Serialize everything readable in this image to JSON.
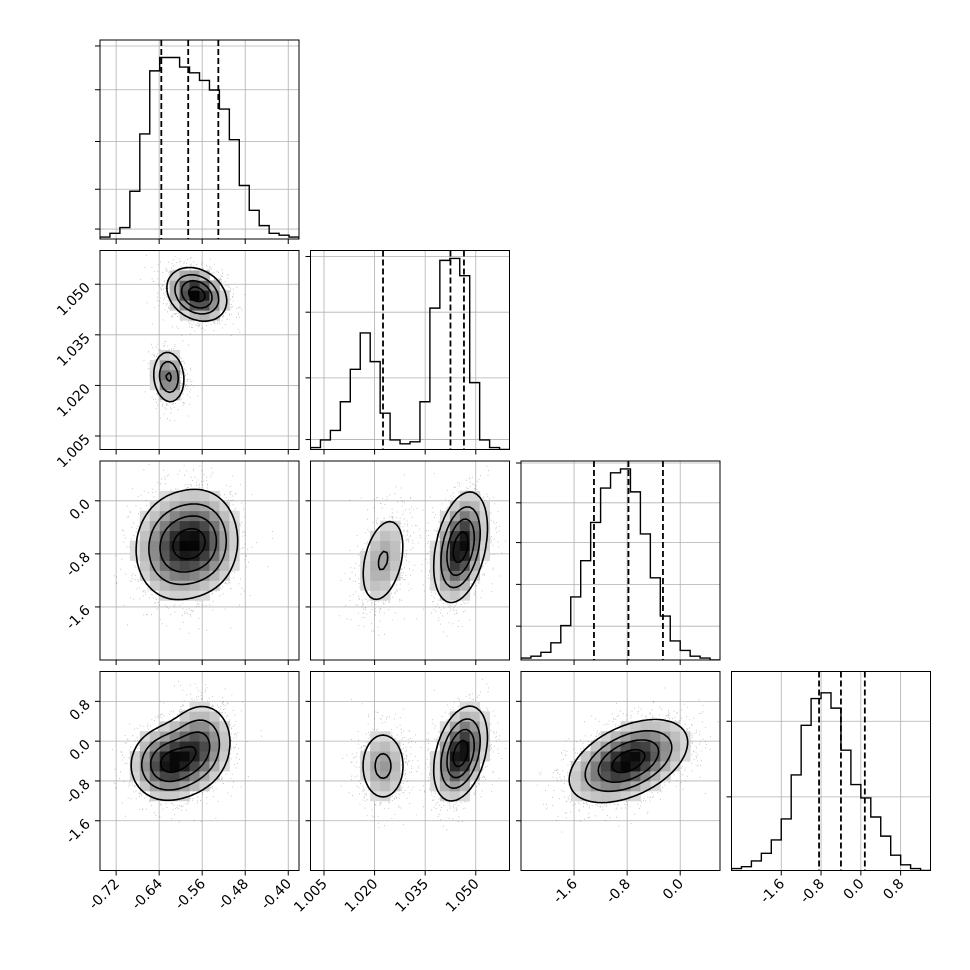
{
  "chart_data": {
    "type": "corner",
    "title": "",
    "grid": true,
    "colors": {
      "hist": "#000000",
      "quantile": "#000000",
      "grid": "#b0b0b0",
      "points": "#000000"
    },
    "params": [
      {
        "range": [
          -0.75,
          -0.38
        ],
        "ticks": [
          "-0.72",
          "-0.64",
          "-0.56",
          "-0.48",
          "-0.40"
        ],
        "tick_values": [
          -0.72,
          -0.64,
          -0.56,
          -0.48,
          -0.4
        ],
        "quantiles": [
          -0.636,
          -0.586,
          -0.53
        ],
        "hist": {
          "edges_start": -0.75,
          "bin_width": 0.0185,
          "counts": [
            0.01,
            0.03,
            0.06,
            0.25,
            0.55,
            0.88,
            0.95,
            0.95,
            0.9,
            0.87,
            0.83,
            0.78,
            0.68,
            0.52,
            0.28,
            0.15,
            0.07,
            0.03,
            0.02,
            0.01
          ]
        },
        "hist_grid_fracs": [
          0.05,
          0.25,
          0.49,
          0.75,
          0.97
        ]
      },
      {
        "range": [
          1.001,
          1.06
        ],
        "ticks": [
          "1.005",
          "1.020",
          "1.035",
          "1.050"
        ],
        "tick_values": [
          1.005,
          1.02,
          1.035,
          1.05
        ],
        "quantiles": [
          1.0225,
          1.0425,
          1.0465
        ],
        "hist": {
          "edges_start": 1.001,
          "bin_width": 0.00295,
          "counts": [
            0.01,
            0.05,
            0.1,
            0.25,
            0.42,
            0.61,
            0.46,
            0.19,
            0.05,
            0.03,
            0.04,
            0.25,
            0.74,
            0.99,
            1.0,
            0.91,
            0.35,
            0.05,
            0.01,
            0.0
          ]
        },
        "hist_grid_fracs": [
          0.05,
          0.36,
          0.69,
          0.97
        ]
      },
      {
        "range": [
          -2.4,
          0.6
        ],
        "ticks": [
          "-1.6",
          "-0.8",
          "0.0"
        ],
        "tick_values": [
          -1.6,
          -0.8,
          0.0
        ],
        "quantiles": [
          -1.3,
          -0.78,
          -0.26
        ],
        "hist": {
          "edges_start": -2.4,
          "bin_width": 0.15,
          "counts": [
            0.01,
            0.02,
            0.04,
            0.09,
            0.18,
            0.33,
            0.52,
            0.72,
            0.9,
            0.98,
            1.0,
            0.88,
            0.66,
            0.43,
            0.23,
            0.1,
            0.05,
            0.02,
            0.01,
            0.0
          ]
        },
        "hist_grid_fracs": [
          0.17,
          0.38,
          0.59,
          0.79,
          0.99
        ]
      },
      {
        "range": [
          -2.6,
          1.4
        ],
        "ticks": [
          "-1.6",
          "-0.8",
          "0.0",
          "0.8"
        ],
        "tick_values": [
          -1.6,
          -0.8,
          0.0,
          0.8
        ],
        "quantiles": [
          -0.84,
          -0.4,
          0.08
        ],
        "hist": {
          "edges_start": -2.6,
          "bin_width": 0.2,
          "counts": [
            0.01,
            0.02,
            0.05,
            0.09,
            0.16,
            0.27,
            0.5,
            0.76,
            0.9,
            0.93,
            0.85,
            0.63,
            0.45,
            0.38,
            0.28,
            0.18,
            0.08,
            0.03,
            0.01,
            0.0
          ]
        },
        "hist_grid_fracs": [
          0.37,
          0.75
        ]
      }
    ],
    "pairs": [
      {
        "row": 1,
        "col": 0,
        "modes": [
          {
            "mx": -0.57,
            "my": 1.047,
            "sx": 0.028,
            "sy": 0.004,
            "rho": -0.25,
            "w": 0.72
          },
          {
            "mx": -0.622,
            "my": 1.0225,
            "sx": 0.016,
            "sy": 0.0042,
            "rho": -0.1,
            "w": 0.28
          }
        ]
      },
      {
        "row": 2,
        "col": 0,
        "modes": [
          {
            "mx": -0.61,
            "my": -0.7,
            "sx": 0.04,
            "sy": 0.42,
            "rho": 0.05,
            "w": 0.6
          },
          {
            "mx": -0.555,
            "my": -0.6,
            "sx": 0.035,
            "sy": 0.4,
            "rho": 0.0,
            "w": 0.4
          }
        ]
      },
      {
        "row": 2,
        "col": 1,
        "modes": [
          {
            "mx": 1.0225,
            "my": -0.9,
            "sx": 0.0042,
            "sy": 0.42,
            "rho": 0.35,
            "w": 0.28
          },
          {
            "mx": 1.0455,
            "my": -0.7,
            "sx": 0.004,
            "sy": 0.42,
            "rho": 0.35,
            "w": 0.72
          }
        ]
      },
      {
        "row": 3,
        "col": 0,
        "modes": [
          {
            "mx": -0.625,
            "my": -0.45,
            "sx": 0.035,
            "sy": 0.38,
            "rho": 0.05,
            "w": 0.55
          },
          {
            "mx": -0.565,
            "my": -0.1,
            "sx": 0.032,
            "sy": 0.45,
            "rho": 0.1,
            "w": 0.45
          }
        ]
      },
      {
        "row": 3,
        "col": 1,
        "modes": [
          {
            "mx": 1.0225,
            "my": -0.5,
            "sx": 0.004,
            "sy": 0.42,
            "rho": 0.0,
            "w": 0.28
          },
          {
            "mx": 1.0455,
            "my": -0.25,
            "sx": 0.004,
            "sy": 0.48,
            "rho": 0.35,
            "w": 0.72
          }
        ]
      },
      {
        "row": 3,
        "col": 2,
        "modes": [
          {
            "mx": -0.78,
            "my": -0.4,
            "sx": 0.45,
            "sy": 0.42,
            "rho": 0.45,
            "w": 1.0
          }
        ]
      }
    ]
  }
}
